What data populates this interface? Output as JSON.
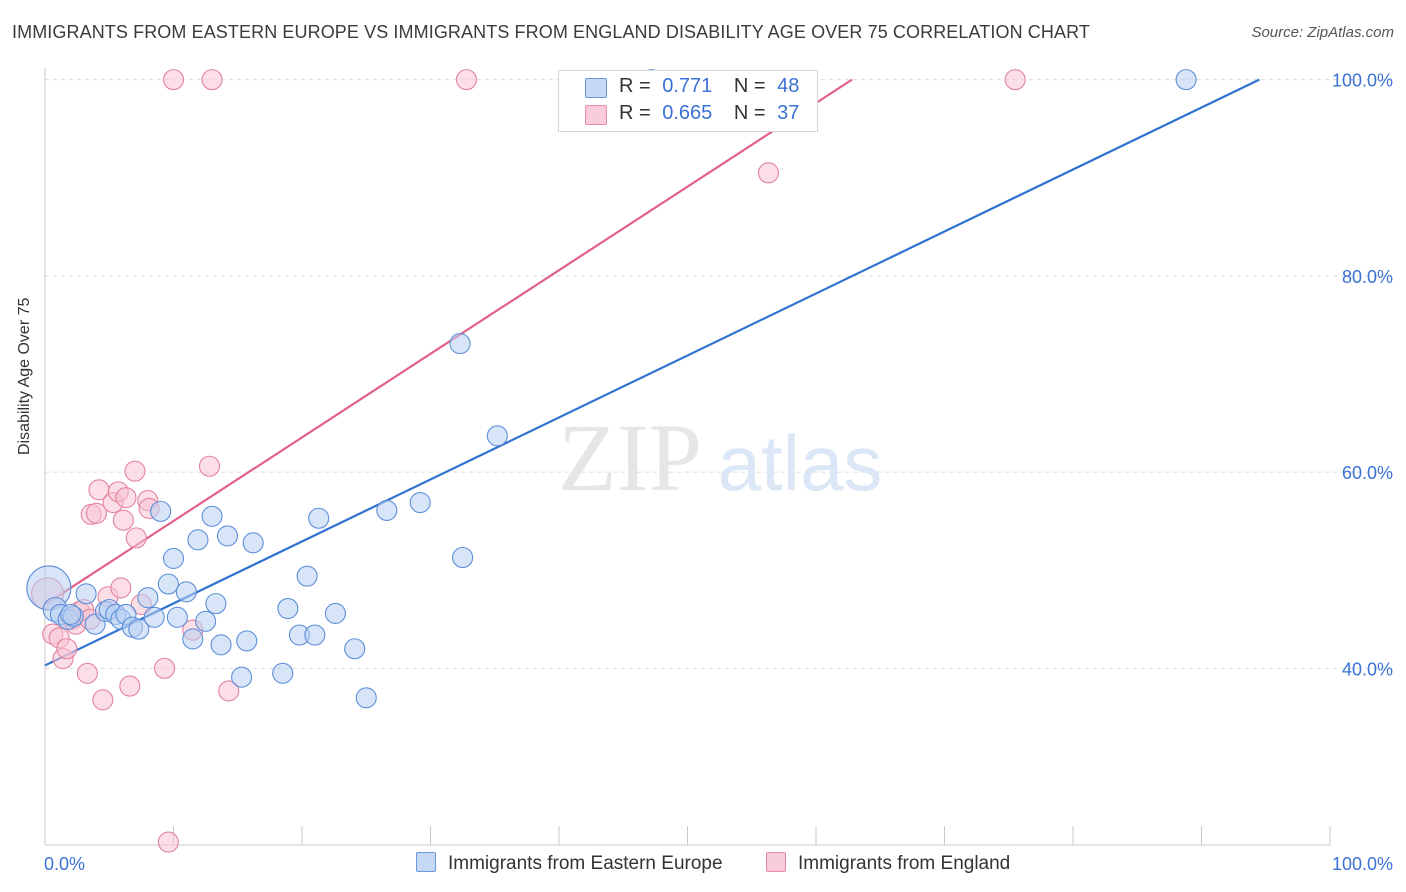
{
  "title": "IMMIGRANTS FROM EASTERN EUROPE VS IMMIGRANTS FROM ENGLAND DISABILITY AGE OVER 75 CORRELATION CHART",
  "source": "Source: ZipAtlas.com",
  "watermark": {
    "zip": "ZIP",
    "atlas": "atlas"
  },
  "legend_top": {
    "rows": [
      {
        "r_label": "R =",
        "r_value": "0.771",
        "n_label": "N =",
        "n_value": "48"
      },
      {
        "r_label": "R =",
        "r_value": "0.665",
        "n_label": "N =",
        "n_value": "37"
      }
    ]
  },
  "colors": {
    "blue_fill": "#b8d0f2",
    "blue_stroke": "#5e8fd9",
    "blue_line": "#2f72d0",
    "pink_fill": "#f7c3d1",
    "pink_stroke": "#e2839f",
    "pink_line": "#e0608a",
    "tick_label": "#3a72d6",
    "grid": "#dcdcdc"
  },
  "chart_data": {
    "type": "scatter",
    "title": "IMMIGRANTS FROM EASTERN EUROPE VS IMMIGRANTS FROM ENGLAND DISABILITY AGE OVER 75 CORRELATION CHART",
    "xlabel": "",
    "ylabel": "Disability Age Over 75",
    "xlim": [
      0,
      100
    ],
    "ylim": [
      22,
      102
    ],
    "x_tick_labels": [
      {
        "value": 0,
        "label": "0.0%"
      },
      {
        "value": 100,
        "label": "100.0%"
      }
    ],
    "y_tick_labels": [
      {
        "value": 40,
        "label": "40.0%"
      },
      {
        "value": 60,
        "label": "60.0%"
      },
      {
        "value": 80,
        "label": "80.0%"
      },
      {
        "value": 100,
        "label": "100.0%"
      }
    ],
    "legend_position": "bottom-center",
    "series": [
      {
        "name": "Immigrants from Eastern Europe",
        "r": 0.771,
        "n": 48,
        "trend": {
          "x0": 0,
          "y0": 40.3,
          "x1": 94.5,
          "y1": 100
        },
        "points": [
          [
            0.3,
            48.2,
            22
          ],
          [
            0.8,
            46.0,
            12
          ],
          [
            1.2,
            45.5,
            10
          ],
          [
            1.8,
            45.0,
            10
          ],
          [
            2.2,
            45.3,
            10
          ],
          [
            3.2,
            47.6,
            10
          ],
          [
            3.9,
            44.5,
            10
          ],
          [
            4.7,
            45.8,
            10
          ],
          [
            5.0,
            46.0,
            10
          ],
          [
            5.5,
            45.5,
            10
          ],
          [
            5.9,
            45.0,
            10
          ],
          [
            6.3,
            45.5,
            10
          ],
          [
            6.8,
            44.2,
            10
          ],
          [
            7.3,
            44.0,
            10
          ],
          [
            8.0,
            47.2,
            10
          ],
          [
            8.5,
            45.2,
            10
          ],
          [
            9.0,
            56.0,
            10
          ],
          [
            9.6,
            48.6,
            10
          ],
          [
            10.0,
            51.2,
            10
          ],
          [
            10.3,
            45.2,
            10
          ],
          [
            11.0,
            47.8,
            10
          ],
          [
            11.5,
            43.0,
            10
          ],
          [
            11.9,
            53.1,
            10
          ],
          [
            12.5,
            44.8,
            10
          ],
          [
            13.0,
            55.5,
            10
          ],
          [
            13.3,
            46.6,
            10
          ],
          [
            13.7,
            42.4,
            10
          ],
          [
            14.2,
            53.5,
            10
          ],
          [
            15.3,
            39.1,
            10
          ],
          [
            15.7,
            42.8,
            10
          ],
          [
            16.2,
            52.8,
            10
          ],
          [
            18.5,
            39.5,
            10
          ],
          [
            18.9,
            46.1,
            10
          ],
          [
            19.8,
            43.4,
            10
          ],
          [
            20.4,
            49.4,
            10
          ],
          [
            21.0,
            43.4,
            10
          ],
          [
            21.3,
            55.3,
            10
          ],
          [
            22.6,
            45.6,
            10
          ],
          [
            24.1,
            42.0,
            10
          ],
          [
            25.0,
            37.0,
            10
          ],
          [
            26.6,
            56.1,
            10
          ],
          [
            29.2,
            56.9,
            10
          ],
          [
            32.5,
            51.3,
            10
          ],
          [
            32.3,
            73.1,
            10
          ],
          [
            35.2,
            63.7,
            10
          ],
          [
            47.2,
            100.0,
            10
          ],
          [
            88.8,
            100.0,
            10
          ],
          [
            2.0,
            45.5,
            10
          ]
        ]
      },
      {
        "name": "Immigrants from England",
        "r": 0.665,
        "n": 37,
        "trend": {
          "x0": 0,
          "y0": 46.5,
          "x1": 62.8,
          "y1": 100
        },
        "points": [
          [
            0.2,
            47.6,
            16
          ],
          [
            0.6,
            43.5,
            10
          ],
          [
            1.1,
            43.1,
            10
          ],
          [
            1.4,
            41.0,
            10
          ],
          [
            1.7,
            42.0,
            10
          ],
          [
            2.1,
            45.0,
            10
          ],
          [
            2.4,
            44.5,
            10
          ],
          [
            2.7,
            45.8,
            10
          ],
          [
            3.0,
            46.0,
            10
          ],
          [
            3.3,
            39.5,
            10
          ],
          [
            3.5,
            45.0,
            10
          ],
          [
            3.6,
            55.7,
            10
          ],
          [
            4.0,
            55.8,
            10
          ],
          [
            4.2,
            58.2,
            10
          ],
          [
            4.5,
            36.8,
            10
          ],
          [
            4.9,
            47.3,
            10
          ],
          [
            5.3,
            56.9,
            10
          ],
          [
            5.7,
            58.0,
            10
          ],
          [
            5.9,
            48.2,
            10
          ],
          [
            6.1,
            55.1,
            10
          ],
          [
            6.3,
            57.4,
            10
          ],
          [
            6.6,
            38.2,
            10
          ],
          [
            7.0,
            60.1,
            10
          ],
          [
            7.1,
            53.3,
            10
          ],
          [
            7.5,
            46.5,
            10
          ],
          [
            8.0,
            57.1,
            10
          ],
          [
            8.1,
            56.3,
            10
          ],
          [
            9.3,
            40.0,
            10
          ],
          [
            9.6,
            22.3,
            10
          ],
          [
            10.0,
            100.0,
            10
          ],
          [
            11.5,
            43.9,
            10
          ],
          [
            12.8,
            60.6,
            10
          ],
          [
            13.0,
            100.0,
            10
          ],
          [
            14.3,
            37.7,
            10
          ],
          [
            32.8,
            100.0,
            10
          ],
          [
            56.3,
            90.5,
            10
          ],
          [
            75.5,
            100.0,
            10
          ]
        ]
      }
    ]
  }
}
